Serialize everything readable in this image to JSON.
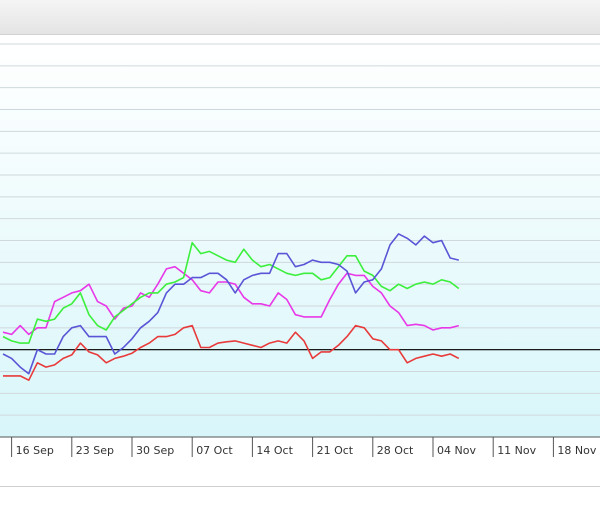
{
  "chart_data": {
    "type": "line",
    "x_ticks": [
      "16 Sep",
      "23 Sep",
      "30 Sep",
      "07 Oct",
      "14 Oct",
      "21 Oct",
      "28 Oct",
      "04 Nov",
      "11 Nov",
      "18 Nov"
    ],
    "x_start": "2013-09-15",
    "x_end": "2013-11-24",
    "ylim": [
      -2,
      7
    ],
    "y_gridlines": [
      7,
      6.5,
      6,
      5.5,
      5,
      4.5,
      4,
      3.5,
      3,
      2.5,
      2,
      1.5,
      1,
      0.5,
      0,
      -0.5,
      -1,
      -1.5,
      -2
    ],
    "reference_line": 0,
    "grid": true,
    "colors": {
      "background_top": "#ffffff",
      "background_bottom": "#d8f6fa",
      "grid": "#cfd8dc",
      "reference_line": "#000000"
    },
    "series": [
      {
        "color": "#e83a3a",
        "values": [
          [
            "2013-09-15",
            -0.6
          ],
          [
            "2013-09-16",
            -0.6
          ],
          [
            "2013-09-17",
            -0.6
          ],
          [
            "2013-09-18",
            -0.7
          ],
          [
            "2013-09-19",
            -0.3
          ],
          [
            "2013-09-20",
            -0.4
          ],
          [
            "2013-09-21",
            -0.35
          ],
          [
            "2013-09-22",
            -0.2
          ],
          [
            "2013-09-23",
            -0.12
          ],
          [
            "2013-09-24",
            0.15
          ],
          [
            "2013-09-25",
            -0.05
          ],
          [
            "2013-09-26",
            -0.12
          ],
          [
            "2013-09-27",
            -0.3
          ],
          [
            "2013-09-28",
            -0.2
          ],
          [
            "2013-09-29",
            -0.15
          ],
          [
            "2013-09-30",
            -0.08
          ],
          [
            "2013-10-01",
            0.05
          ],
          [
            "2013-10-02",
            0.15
          ],
          [
            "2013-10-03",
            0.3
          ],
          [
            "2013-10-04",
            0.3
          ],
          [
            "2013-10-05",
            0.35
          ],
          [
            "2013-10-06",
            0.5
          ],
          [
            "2013-10-07",
            0.55
          ],
          [
            "2013-10-08",
            0.05
          ],
          [
            "2013-10-09",
            0.05
          ],
          [
            "2013-10-10",
            0.15
          ],
          [
            "2013-10-11",
            0.18
          ],
          [
            "2013-10-12",
            0.2
          ],
          [
            "2013-10-13",
            0.15
          ],
          [
            "2013-10-14",
            0.1
          ],
          [
            "2013-10-15",
            0.05
          ],
          [
            "2013-10-16",
            0.15
          ],
          [
            "2013-10-17",
            0.2
          ],
          [
            "2013-10-18",
            0.15
          ],
          [
            "2013-10-19",
            0.4
          ],
          [
            "2013-10-20",
            0.2
          ],
          [
            "2013-10-21",
            -0.2
          ],
          [
            "2013-10-22",
            -0.05
          ],
          [
            "2013-10-23",
            -0.05
          ],
          [
            "2013-10-24",
            0.1
          ],
          [
            "2013-10-25",
            0.3
          ],
          [
            "2013-10-26",
            0.55
          ],
          [
            "2013-10-27",
            0.5
          ],
          [
            "2013-10-28",
            0.25
          ],
          [
            "2013-10-29",
            0.2
          ],
          [
            "2013-10-30",
            0.0
          ],
          [
            "2013-10-31",
            0.0
          ],
          [
            "2013-11-01",
            -0.3
          ],
          [
            "2013-11-02",
            -0.2
          ],
          [
            "2013-11-03",
            -0.15
          ],
          [
            "2013-11-04",
            -0.1
          ],
          [
            "2013-11-05",
            -0.15
          ],
          [
            "2013-11-06",
            -0.1
          ],
          [
            "2013-11-07",
            -0.2
          ]
        ]
      },
      {
        "color": "#e838e8",
        "values": [
          [
            "2013-09-15",
            0.4
          ],
          [
            "2013-09-16",
            0.35
          ],
          [
            "2013-09-17",
            0.55
          ],
          [
            "2013-09-18",
            0.35
          ],
          [
            "2013-09-19",
            0.5
          ],
          [
            "2013-09-20",
            0.5
          ],
          [
            "2013-09-21",
            1.1
          ],
          [
            "2013-09-22",
            1.2
          ],
          [
            "2013-09-23",
            1.3
          ],
          [
            "2013-09-24",
            1.35
          ],
          [
            "2013-09-25",
            1.5
          ],
          [
            "2013-09-26",
            1.1
          ],
          [
            "2013-09-27",
            1.0
          ],
          [
            "2013-09-28",
            0.7
          ],
          [
            "2013-09-29",
            0.95
          ],
          [
            "2013-09-30",
            1.0
          ],
          [
            "2013-10-01",
            1.3
          ],
          [
            "2013-10-02",
            1.2
          ],
          [
            "2013-10-03",
            1.5
          ],
          [
            "2013-10-04",
            1.85
          ],
          [
            "2013-10-05",
            1.9
          ],
          [
            "2013-10-06",
            1.75
          ],
          [
            "2013-10-07",
            1.6
          ],
          [
            "2013-10-08",
            1.35
          ],
          [
            "2013-10-09",
            1.3
          ],
          [
            "2013-10-10",
            1.55
          ],
          [
            "2013-10-11",
            1.55
          ],
          [
            "2013-10-12",
            1.5
          ],
          [
            "2013-10-13",
            1.2
          ],
          [
            "2013-10-14",
            1.05
          ],
          [
            "2013-10-15",
            1.05
          ],
          [
            "2013-10-16",
            1.0
          ],
          [
            "2013-10-17",
            1.3
          ],
          [
            "2013-10-18",
            1.15
          ],
          [
            "2013-10-19",
            0.8
          ],
          [
            "2013-10-20",
            0.75
          ],
          [
            "2013-10-21",
            0.75
          ],
          [
            "2013-10-22",
            0.75
          ],
          [
            "2013-10-23",
            1.15
          ],
          [
            "2013-10-24",
            1.5
          ],
          [
            "2013-10-25",
            1.75
          ],
          [
            "2013-10-26",
            1.7
          ],
          [
            "2013-10-27",
            1.7
          ],
          [
            "2013-10-28",
            1.45
          ],
          [
            "2013-10-29",
            1.3
          ],
          [
            "2013-10-30",
            1.0
          ],
          [
            "2013-10-31",
            0.85
          ],
          [
            "2013-11-01",
            0.55
          ],
          [
            "2013-11-02",
            0.58
          ],
          [
            "2013-11-03",
            0.55
          ],
          [
            "2013-11-04",
            0.45
          ],
          [
            "2013-11-05",
            0.5
          ],
          [
            "2013-11-06",
            0.5
          ],
          [
            "2013-11-07",
            0.55
          ]
        ]
      },
      {
        "color": "#3cef3c",
        "values": [
          [
            "2013-09-15",
            0.3
          ],
          [
            "2013-09-16",
            0.2
          ],
          [
            "2013-09-17",
            0.15
          ],
          [
            "2013-09-18",
            0.15
          ],
          [
            "2013-09-19",
            0.7
          ],
          [
            "2013-09-20",
            0.65
          ],
          [
            "2013-09-21",
            0.7
          ],
          [
            "2013-09-22",
            0.95
          ],
          [
            "2013-09-23",
            1.05
          ],
          [
            "2013-09-24",
            1.3
          ],
          [
            "2013-09-25",
            0.8
          ],
          [
            "2013-09-26",
            0.55
          ],
          [
            "2013-09-27",
            0.45
          ],
          [
            "2013-09-28",
            0.75
          ],
          [
            "2013-09-29",
            0.9
          ],
          [
            "2013-09-30",
            1.05
          ],
          [
            "2013-10-01",
            1.2
          ],
          [
            "2013-10-02",
            1.3
          ],
          [
            "2013-10-03",
            1.3
          ],
          [
            "2013-10-04",
            1.5
          ],
          [
            "2013-10-05",
            1.55
          ],
          [
            "2013-10-06",
            1.65
          ],
          [
            "2013-10-07",
            2.45
          ],
          [
            "2013-10-08",
            2.2
          ],
          [
            "2013-10-09",
            2.25
          ],
          [
            "2013-10-10",
            2.15
          ],
          [
            "2013-10-11",
            2.05
          ],
          [
            "2013-10-12",
            2.0
          ],
          [
            "2013-10-13",
            2.3
          ],
          [
            "2013-10-14",
            2.05
          ],
          [
            "2013-10-15",
            1.9
          ],
          [
            "2013-10-16",
            1.95
          ],
          [
            "2013-10-17",
            1.85
          ],
          [
            "2013-10-18",
            1.75
          ],
          [
            "2013-10-19",
            1.7
          ],
          [
            "2013-10-20",
            1.75
          ],
          [
            "2013-10-21",
            1.75
          ],
          [
            "2013-10-22",
            1.6
          ],
          [
            "2013-10-23",
            1.65
          ],
          [
            "2013-10-24",
            1.9
          ],
          [
            "2013-10-25",
            2.15
          ],
          [
            "2013-10-26",
            2.15
          ],
          [
            "2013-10-27",
            1.8
          ],
          [
            "2013-10-28",
            1.7
          ],
          [
            "2013-10-29",
            1.45
          ],
          [
            "2013-10-30",
            1.35
          ],
          [
            "2013-10-31",
            1.5
          ],
          [
            "2013-11-01",
            1.4
          ],
          [
            "2013-11-02",
            1.5
          ],
          [
            "2013-11-03",
            1.55
          ],
          [
            "2013-11-04",
            1.5
          ],
          [
            "2013-11-05",
            1.6
          ],
          [
            "2013-11-06",
            1.55
          ],
          [
            "2013-11-07",
            1.4
          ]
        ]
      },
      {
        "color": "#5a55d6",
        "values": [
          [
            "2013-09-15",
            -0.1
          ],
          [
            "2013-09-16",
            -0.2
          ],
          [
            "2013-09-17",
            -0.4
          ],
          [
            "2013-09-18",
            -0.55
          ],
          [
            "2013-09-19",
            0.0
          ],
          [
            "2013-09-20",
            -0.1
          ],
          [
            "2013-09-21",
            -0.1
          ],
          [
            "2013-09-22",
            0.3
          ],
          [
            "2013-09-23",
            0.5
          ],
          [
            "2013-09-24",
            0.55
          ],
          [
            "2013-09-25",
            0.3
          ],
          [
            "2013-09-26",
            0.3
          ],
          [
            "2013-09-27",
            0.3
          ],
          [
            "2013-09-28",
            -0.1
          ],
          [
            "2013-09-29",
            0.05
          ],
          [
            "2013-09-30",
            0.25
          ],
          [
            "2013-10-01",
            0.5
          ],
          [
            "2013-10-02",
            0.65
          ],
          [
            "2013-10-03",
            0.85
          ],
          [
            "2013-10-04",
            1.3
          ],
          [
            "2013-10-05",
            1.5
          ],
          [
            "2013-10-06",
            1.5
          ],
          [
            "2013-10-07",
            1.65
          ],
          [
            "2013-10-08",
            1.65
          ],
          [
            "2013-10-09",
            1.75
          ],
          [
            "2013-10-10",
            1.75
          ],
          [
            "2013-10-11",
            1.6
          ],
          [
            "2013-10-12",
            1.3
          ],
          [
            "2013-10-13",
            1.6
          ],
          [
            "2013-10-14",
            1.7
          ],
          [
            "2013-10-15",
            1.75
          ],
          [
            "2013-10-16",
            1.75
          ],
          [
            "2013-10-17",
            2.2
          ],
          [
            "2013-10-18",
            2.2
          ],
          [
            "2013-10-19",
            1.9
          ],
          [
            "2013-10-20",
            1.95
          ],
          [
            "2013-10-21",
            2.05
          ],
          [
            "2013-10-22",
            2.0
          ],
          [
            "2013-10-23",
            2.0
          ],
          [
            "2013-10-24",
            1.95
          ],
          [
            "2013-10-25",
            1.8
          ],
          [
            "2013-10-26",
            1.3
          ],
          [
            "2013-10-27",
            1.55
          ],
          [
            "2013-10-28",
            1.6
          ],
          [
            "2013-10-29",
            1.85
          ],
          [
            "2013-10-30",
            2.4
          ],
          [
            "2013-10-31",
            2.65
          ],
          [
            "2013-11-01",
            2.55
          ],
          [
            "2013-11-02",
            2.4
          ],
          [
            "2013-11-03",
            2.6
          ],
          [
            "2013-11-04",
            2.45
          ],
          [
            "2013-11-05",
            2.5
          ],
          [
            "2013-11-06",
            2.1
          ],
          [
            "2013-11-07",
            2.05
          ]
        ]
      }
    ]
  }
}
